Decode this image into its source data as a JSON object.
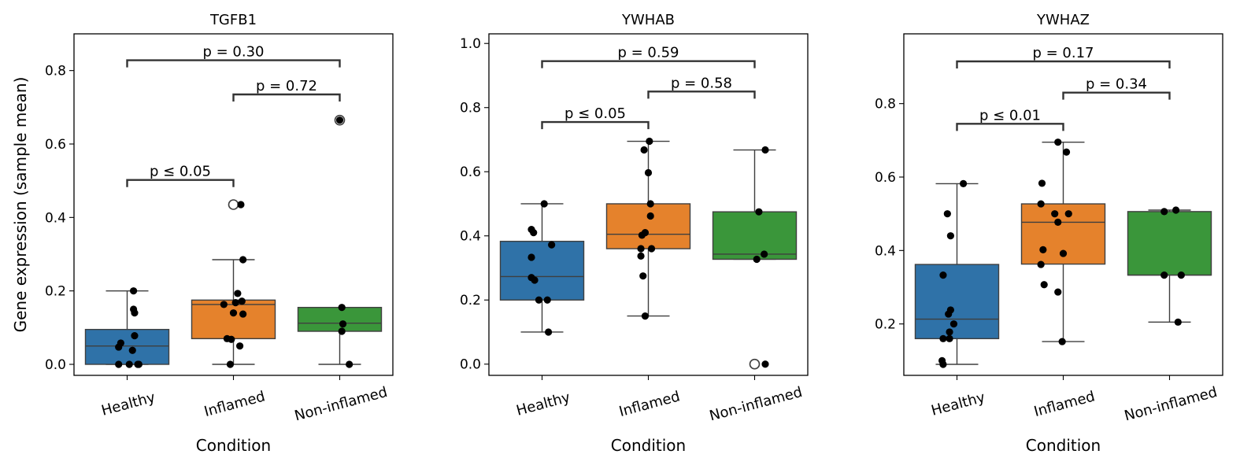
{
  "chart_data": [
    {
      "type": "box",
      "title": "TGFB1",
      "xlabel": "Condition",
      "ylabel": "Gene expression (sample mean)",
      "ylim": [
        -0.03,
        0.9
      ],
      "yticks": [
        0.0,
        0.2,
        0.4,
        0.6,
        0.8
      ],
      "ytick_labels": [
        "0.0",
        "0.2",
        "0.4",
        "0.6",
        "0.8"
      ],
      "categories": [
        "Healthy",
        "Inflamed",
        "Non-inflamed"
      ],
      "colors": [
        "#2f72a8",
        "#e5822c",
        "#3a963a"
      ],
      "boxes": [
        {
          "q1": 0.0,
          "median": 0.05,
          "q3": 0.095,
          "whislo": 0.0,
          "whishi": 0.2,
          "fliers": []
        },
        {
          "q1": 0.07,
          "median": 0.163,
          "q3": 0.175,
          "whislo": 0.0,
          "whishi": 0.285,
          "fliers": [
            0.435
          ]
        },
        {
          "q1": 0.09,
          "median": 0.112,
          "q3": 0.155,
          "whislo": 0.0,
          "whishi": 0.155,
          "fliers": [
            0.665
          ]
        }
      ],
      "points": [
        [
          {
            "dx": 0.06,
            "y": 0.2
          },
          {
            "dx": 0.06,
            "y": 0.15
          },
          {
            "dx": 0.07,
            "y": 0.14
          },
          {
            "dx": 0.07,
            "y": 0.078
          },
          {
            "dx": -0.06,
            "y": 0.058
          },
          {
            "dx": -0.08,
            "y": 0.047
          },
          {
            "dx": 0.05,
            "y": 0.038
          },
          {
            "dx": -0.08,
            "y": 0.0
          },
          {
            "dx": 0.02,
            "y": 0.0
          },
          {
            "dx": 0.1,
            "y": 0.0
          },
          {
            "dx": 0.11,
            "y": 0.0
          }
        ],
        [
          {
            "dx": 0.07,
            "y": 0.435
          },
          {
            "dx": 0.09,
            "y": 0.285
          },
          {
            "dx": 0.04,
            "y": 0.193
          },
          {
            "dx": 0.08,
            "y": 0.172
          },
          {
            "dx": 0.02,
            "y": 0.168
          },
          {
            "dx": -0.09,
            "y": 0.163
          },
          {
            "dx": 0.0,
            "y": 0.14
          },
          {
            "dx": 0.09,
            "y": 0.137
          },
          {
            "dx": -0.06,
            "y": 0.07
          },
          {
            "dx": -0.02,
            "y": 0.068
          },
          {
            "dx": 0.06,
            "y": 0.05
          },
          {
            "dx": -0.03,
            "y": 0.0
          }
        ],
        [
          {
            "dx": 0.0,
            "y": 0.665
          },
          {
            "dx": 0.02,
            "y": 0.155
          },
          {
            "dx": 0.03,
            "y": 0.11
          },
          {
            "dx": 0.02,
            "y": 0.09
          },
          {
            "dx": 0.09,
            "y": 0.0
          }
        ]
      ],
      "annotations": [
        {
          "from": 0,
          "to": 1,
          "y": 0.502,
          "label": "p ≤ 0.05"
        },
        {
          "from": 1,
          "to": 2,
          "y": 0.735,
          "label": "p = 0.72"
        },
        {
          "from": 0,
          "to": 2,
          "y": 0.828,
          "label": "p = 0.30"
        }
      ]
    },
    {
      "type": "box",
      "title": "YWHAB",
      "xlabel": "Condition",
      "ylabel": "",
      "ylim": [
        -0.035,
        1.03
      ],
      "yticks": [
        0.0,
        0.2,
        0.4,
        0.6,
        0.8,
        1.0
      ],
      "ytick_labels": [
        "0.0",
        "0.2",
        "0.4",
        "0.6",
        "0.8",
        "1.0"
      ],
      "categories": [
        "Healthy",
        "Inflamed",
        "Non-inflamed"
      ],
      "colors": [
        "#2f72a8",
        "#e5822c",
        "#3a963a"
      ],
      "boxes": [
        {
          "q1": 0.2,
          "median": 0.273,
          "q3": 0.383,
          "whislo": 0.1,
          "whishi": 0.5,
          "fliers": []
        },
        {
          "q1": 0.36,
          "median": 0.405,
          "q3": 0.5,
          "whislo": 0.15,
          "whishi": 0.695,
          "fliers": []
        },
        {
          "q1": 0.327,
          "median": 0.343,
          "q3": 0.475,
          "whislo": 0.327,
          "whishi": 0.668,
          "fliers": [
            0.0
          ]
        }
      ],
      "points": [
        [
          {
            "dx": 0.02,
            "y": 0.5
          },
          {
            "dx": -0.1,
            "y": 0.42
          },
          {
            "dx": -0.08,
            "y": 0.41
          },
          {
            "dx": 0.09,
            "y": 0.372
          },
          {
            "dx": -0.1,
            "y": 0.333
          },
          {
            "dx": -0.1,
            "y": 0.27
          },
          {
            "dx": -0.07,
            "y": 0.262
          },
          {
            "dx": -0.03,
            "y": 0.2
          },
          {
            "dx": 0.05,
            "y": 0.2
          },
          {
            "dx": 0.06,
            "y": 0.1
          }
        ],
        [
          {
            "dx": 0.01,
            "y": 0.695
          },
          {
            "dx": -0.04,
            "y": 0.668
          },
          {
            "dx": 0.0,
            "y": 0.597
          },
          {
            "dx": 0.02,
            "y": 0.5
          },
          {
            "dx": 0.02,
            "y": 0.462
          },
          {
            "dx": -0.03,
            "y": 0.41
          },
          {
            "dx": -0.06,
            "y": 0.402
          },
          {
            "dx": -0.07,
            "y": 0.36
          },
          {
            "dx": 0.03,
            "y": 0.36
          },
          {
            "dx": -0.07,
            "y": 0.337
          },
          {
            "dx": -0.05,
            "y": 0.275
          },
          {
            "dx": -0.03,
            "y": 0.15
          }
        ],
        [
          {
            "dx": 0.1,
            "y": 0.668
          },
          {
            "dx": 0.04,
            "y": 0.475
          },
          {
            "dx": 0.09,
            "y": 0.343
          },
          {
            "dx": 0.02,
            "y": 0.327
          },
          {
            "dx": 0.1,
            "y": 0.0
          }
        ]
      ],
      "annotations": [
        {
          "from": 0,
          "to": 1,
          "y": 0.755,
          "label": "p ≤ 0.05"
        },
        {
          "from": 1,
          "to": 2,
          "y": 0.85,
          "label": "p = 0.58"
        },
        {
          "from": 0,
          "to": 2,
          "y": 0.945,
          "label": "p = 0.59"
        }
      ]
    },
    {
      "type": "box",
      "title": "YWHAZ",
      "xlabel": "Condition",
      "ylabel": "",
      "ylim": [
        0.06,
        0.99
      ],
      "yticks": [
        0.2,
        0.4,
        0.6,
        0.8
      ],
      "ytick_labels": [
        "0.2",
        "0.4",
        "0.6",
        "0.8"
      ],
      "categories": [
        "Healthy",
        "Inflamed",
        "Non-inflamed"
      ],
      "colors": [
        "#2f72a8",
        "#e5822c",
        "#3a963a"
      ],
      "boxes": [
        {
          "q1": 0.16,
          "median": 0.213,
          "q3": 0.362,
          "whislo": 0.09,
          "whishi": 0.582,
          "fliers": []
        },
        {
          "q1": 0.363,
          "median": 0.477,
          "q3": 0.527,
          "whislo": 0.152,
          "whishi": 0.695,
          "fliers": []
        },
        {
          "q1": 0.333,
          "median": 0.333,
          "q3": 0.506,
          "whislo": 0.205,
          "whishi": 0.51,
          "fliers": []
        }
      ],
      "points": [
        [
          {
            "dx": 0.06,
            "y": 0.582
          },
          {
            "dx": -0.09,
            "y": 0.5
          },
          {
            "dx": -0.06,
            "y": 0.44
          },
          {
            "dx": -0.13,
            "y": 0.333
          },
          {
            "dx": -0.06,
            "y": 0.238
          },
          {
            "dx": -0.08,
            "y": 0.227
          },
          {
            "dx": -0.03,
            "y": 0.2
          },
          {
            "dx": -0.07,
            "y": 0.178
          },
          {
            "dx": -0.13,
            "y": 0.16
          },
          {
            "dx": -0.07,
            "y": 0.16
          },
          {
            "dx": -0.14,
            "y": 0.1
          },
          {
            "dx": -0.13,
            "y": 0.09
          }
        ],
        [
          {
            "dx": -0.05,
            "y": 0.695
          },
          {
            "dx": 0.03,
            "y": 0.668
          },
          {
            "dx": -0.2,
            "y": 0.583
          },
          {
            "dx": -0.21,
            "y": 0.527
          },
          {
            "dx": -0.08,
            "y": 0.5
          },
          {
            "dx": 0.05,
            "y": 0.5
          },
          {
            "dx": -0.05,
            "y": 0.477
          },
          {
            "dx": -0.19,
            "y": 0.402
          },
          {
            "dx": 0.0,
            "y": 0.392
          },
          {
            "dx": -0.21,
            "y": 0.362
          },
          {
            "dx": -0.18,
            "y": 0.307
          },
          {
            "dx": -0.05,
            "y": 0.287
          },
          {
            "dx": -0.01,
            "y": 0.152
          }
        ],
        [
          {
            "dx": 0.06,
            "y": 0.51
          },
          {
            "dx": -0.05,
            "y": 0.506
          },
          {
            "dx": -0.05,
            "y": 0.333
          },
          {
            "dx": 0.11,
            "y": 0.333
          },
          {
            "dx": 0.08,
            "y": 0.205
          }
        ]
      ],
      "annotations": [
        {
          "from": 0,
          "to": 1,
          "y": 0.745,
          "label": "p ≤ 0.01"
        },
        {
          "from": 1,
          "to": 2,
          "y": 0.83,
          "label": "p = 0.34"
        },
        {
          "from": 0,
          "to": 2,
          "y": 0.915,
          "label": "p = 0.17"
        }
      ]
    }
  ]
}
